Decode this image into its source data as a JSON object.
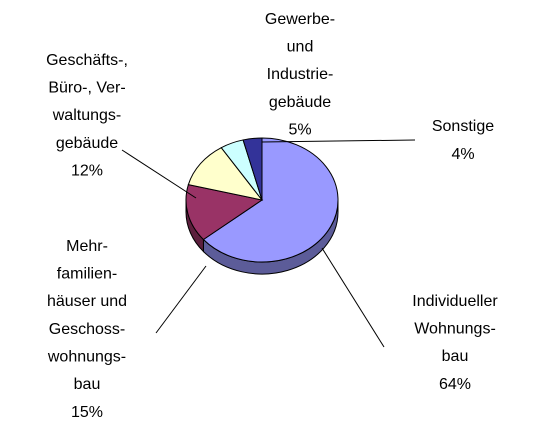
{
  "chart_data": {
    "type": "pie",
    "categories": [
      "Individueller\nWohnungs-\nbau",
      "Mehr-\nfamilien-\nhäuser und\nGeschoss-\nwohnungs-\nbau",
      "Geschäfts-,\nBüro-, Ver-\nwaltungs-\ngebäude",
      "Gewerbe-\nund\nIndustrie-\ngebäude",
      "Sonstige"
    ],
    "values": [
      64,
      15,
      12,
      5,
      4
    ],
    "value_labels": [
      "64%",
      "15%",
      "12%",
      "5%",
      "4%"
    ],
    "colors": [
      "#9999ff",
      "#993366",
      "#ffffcc",
      "#ccffff",
      "#333399"
    ]
  }
}
